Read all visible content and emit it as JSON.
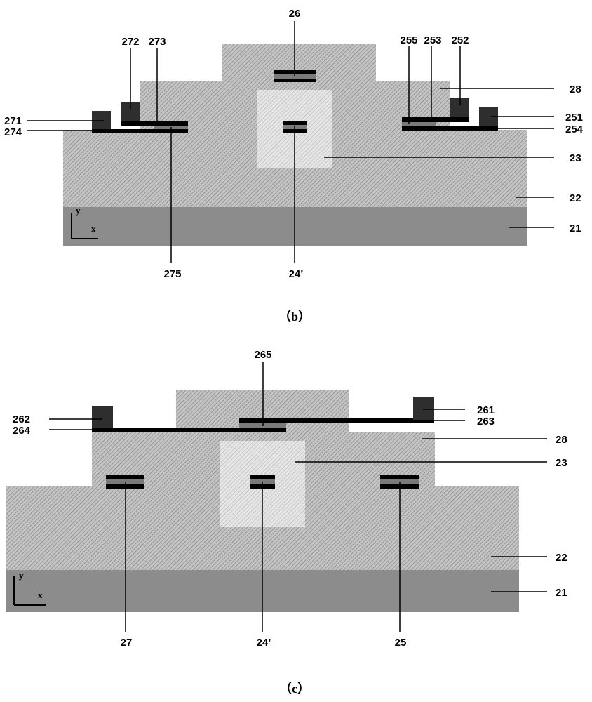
{
  "colors": {
    "substrate": "#8c8c8c",
    "layer": "#b4b4b4",
    "region23": "#dcdcdc",
    "electrode": "#2e2e2e",
    "bar": "#000000",
    "barMid": "#7a7a7a"
  },
  "fig_b": {
    "caption": "（b）",
    "axis": {
      "y": "y",
      "x": "x"
    },
    "labels": {
      "l26": "26",
      "l272": "272",
      "l273": "273",
      "l271": "271",
      "l274": "274",
      "l255": "255",
      "l253": "253",
      "l252": "252",
      "l28": "28",
      "l251": "251",
      "l254": "254",
      "l23": "23",
      "l22": "22",
      "l21": "21",
      "l275": "275",
      "l24p": "24’"
    }
  },
  "fig_c": {
    "caption": "（c）",
    "axis": {
      "y": "y",
      "x": "x"
    },
    "labels": {
      "l265": "265",
      "l262": "262",
      "l264": "264",
      "l261": "261",
      "l263": "263",
      "l28": "28",
      "l23": "23",
      "l22": "22",
      "l21": "21",
      "l27": "27",
      "l24p": "24’",
      "l25": "25"
    }
  }
}
